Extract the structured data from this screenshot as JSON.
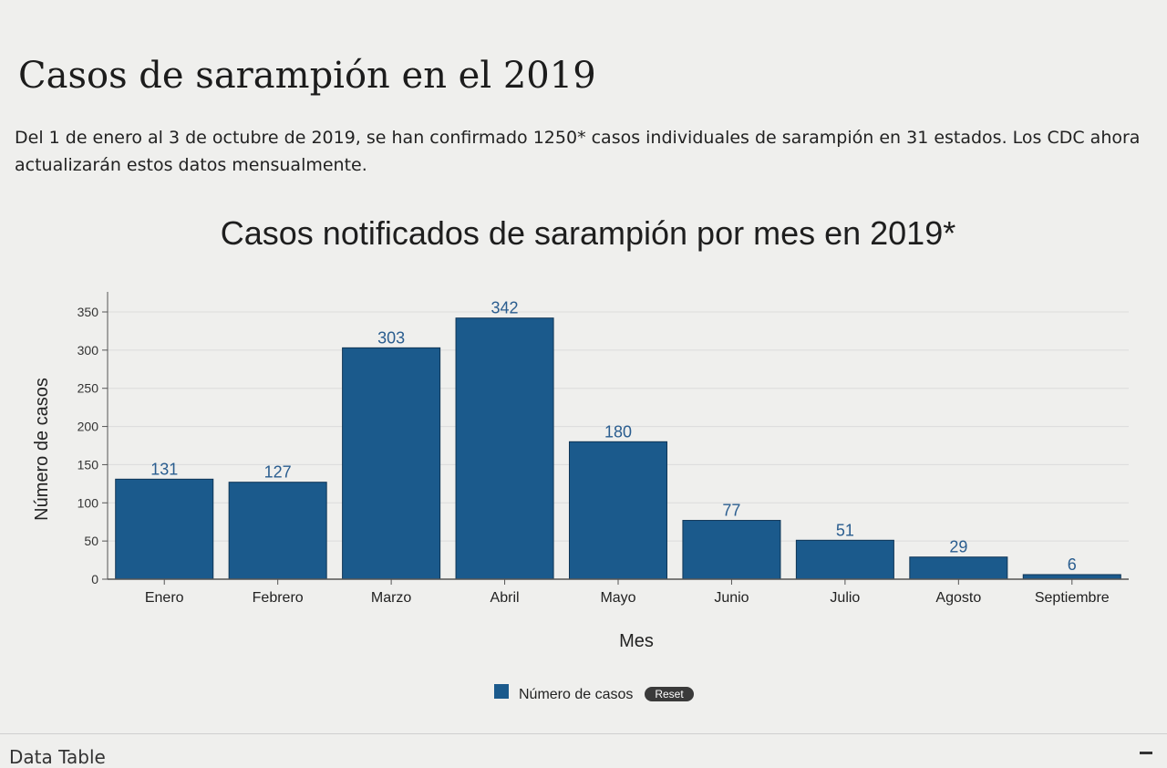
{
  "page": {
    "title": "Casos de sarampión en el 2019",
    "intro": "Del 1 de enero al 3 de octubre de 2019, se han confirmado 1250* casos individuales de sarampión en 31 estados. Los CDC ahora actualizarán estos datos mensualmente.",
    "data_table_label": "Data Table"
  },
  "chart_data": {
    "type": "bar",
    "title": "Casos notificados de sarampión por mes en 2019*",
    "xlabel": "Mes",
    "ylabel": "Número de casos",
    "categories": [
      "Enero",
      "Febrero",
      "Marzo",
      "Abril",
      "Mayo",
      "Junio",
      "Julio",
      "Agosto",
      "Septiembre"
    ],
    "series": [
      {
        "name": "Número de casos",
        "values": [
          131,
          127,
          303,
          342,
          180,
          77,
          51,
          29,
          6
        ],
        "color": "#1b5a8c"
      }
    ],
    "ylim": [
      0,
      350
    ],
    "yticks": [
      0,
      50,
      100,
      150,
      200,
      250,
      300,
      350
    ],
    "grid": true,
    "legend": "bottom-center",
    "reset_label": "Reset"
  }
}
